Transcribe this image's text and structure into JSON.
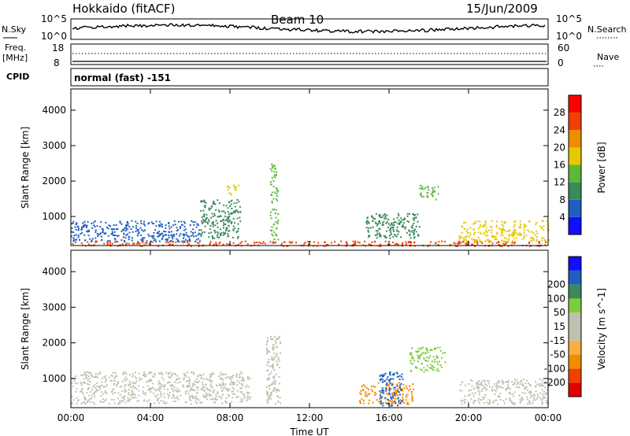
{
  "header": {
    "station": "Hokkaido (fitACF)",
    "beam": "Beam 10",
    "date": "15/Jun/2009"
  },
  "noise_panel": {
    "left_label": "N.Sky",
    "right_label": "N.Search",
    "left_ticks": [
      "10^5",
      "10^0"
    ],
    "right_ticks": [
      "10^5",
      "10^0"
    ]
  },
  "freq_panel": {
    "left_label_top": "Freq.",
    "left_label_unit": "[MHz]",
    "left_ticks": [
      "18",
      "8"
    ],
    "right_ticks": [
      "60",
      "0"
    ],
    "right_label": "Nave"
  },
  "cpid": {
    "label": "CPID",
    "value": "normal (fast) -151"
  },
  "colors": {
    "power_scale": [
      "#1010ff",
      "#1e5fc0",
      "#3a8a5a",
      "#5cb83a",
      "#e8c800",
      "#f08c00",
      "#f04000",
      "#ff0000"
    ],
    "velocity_scale": [
      "#e00000",
      "#f04000",
      "#f08c00",
      "#f8b040",
      "#c0c0b0",
      "#c0c0b0",
      "#7ccc3c",
      "#3a8a5a",
      "#1e5fc0",
      "#1010ff"
    ],
    "ground_scatter": "#c0c0b0"
  },
  "chart_data": [
    {
      "type": "heatmap",
      "title": "Power",
      "ylabel": "Slant Range [km]",
      "xlabel": "Time UT",
      "x_ticks": [
        "00:00",
        "04:00",
        "08:00",
        "12:00",
        "16:00",
        "20:00",
        "00:00"
      ],
      "xlim_hours": [
        0,
        24
      ],
      "y_ticks": [
        1000,
        2000,
        3000,
        4000
      ],
      "ylim": [
        180,
        4600
      ],
      "colorbar": {
        "label": "Power [dB]",
        "ticks": [
          4,
          8,
          12,
          16,
          20,
          24,
          28
        ]
      },
      "echo_regions": [
        {
          "t0": 0.0,
          "t1": 6.5,
          "r0": 300,
          "r1": 900,
          "value_db": 6
        },
        {
          "t0": 0.0,
          "t1": 24.0,
          "r0": 180,
          "r1": 320,
          "value_db": 24
        },
        {
          "t0": 6.5,
          "t1": 8.5,
          "r0": 400,
          "r1": 1500,
          "value_db": 10
        },
        {
          "t0": 7.8,
          "t1": 8.4,
          "r0": 1600,
          "r1": 1900,
          "value_db": 16
        },
        {
          "t0": 10.0,
          "t1": 10.4,
          "r0": 300,
          "r1": 2500,
          "value_db": 12
        },
        {
          "t0": 14.8,
          "t1": 17.5,
          "r0": 400,
          "r1": 1100,
          "value_db": 10
        },
        {
          "t0": 17.5,
          "t1": 18.5,
          "r0": 1500,
          "r1": 1900,
          "value_db": 12
        },
        {
          "t0": 19.5,
          "t1": 24.0,
          "r0": 300,
          "r1": 900,
          "value_db": 18
        }
      ]
    },
    {
      "type": "heatmap",
      "title": "Velocity",
      "ylabel": "Slant Range [km]",
      "xlabel": "Time UT",
      "x_ticks": [
        "00:00",
        "04:00",
        "08:00",
        "12:00",
        "16:00",
        "20:00",
        "00:00"
      ],
      "xlim_hours": [
        0,
        24
      ],
      "y_ticks": [
        1000,
        2000,
        3000,
        4000
      ],
      "ylim": [
        180,
        4600
      ],
      "colorbar": {
        "label": "Velocity [m s^-1]",
        "ticks": [
          200,
          100,
          50,
          15,
          -15,
          -50,
          -100,
          -200
        ]
      },
      "echo_regions": [
        {
          "t0": 0.0,
          "t1": 9.0,
          "r0": 300,
          "r1": 1200,
          "value_ms": 0,
          "ground_scatter": true
        },
        {
          "t0": 9.8,
          "t1": 10.5,
          "r0": 300,
          "r1": 2200,
          "value_ms": 0,
          "ground_scatter": true
        },
        {
          "t0": 14.5,
          "t1": 17.2,
          "r0": 300,
          "r1": 900,
          "value_ms": -60
        },
        {
          "t0": 15.5,
          "t1": 16.7,
          "r0": 250,
          "r1": 1200,
          "value_ms": 150
        },
        {
          "t0": 17.0,
          "t1": 18.8,
          "r0": 1200,
          "r1": 1900,
          "value_ms": 40
        },
        {
          "t0": 19.5,
          "t1": 24.0,
          "r0": 300,
          "r1": 1000,
          "value_ms": 0,
          "ground_scatter": true
        }
      ]
    }
  ]
}
